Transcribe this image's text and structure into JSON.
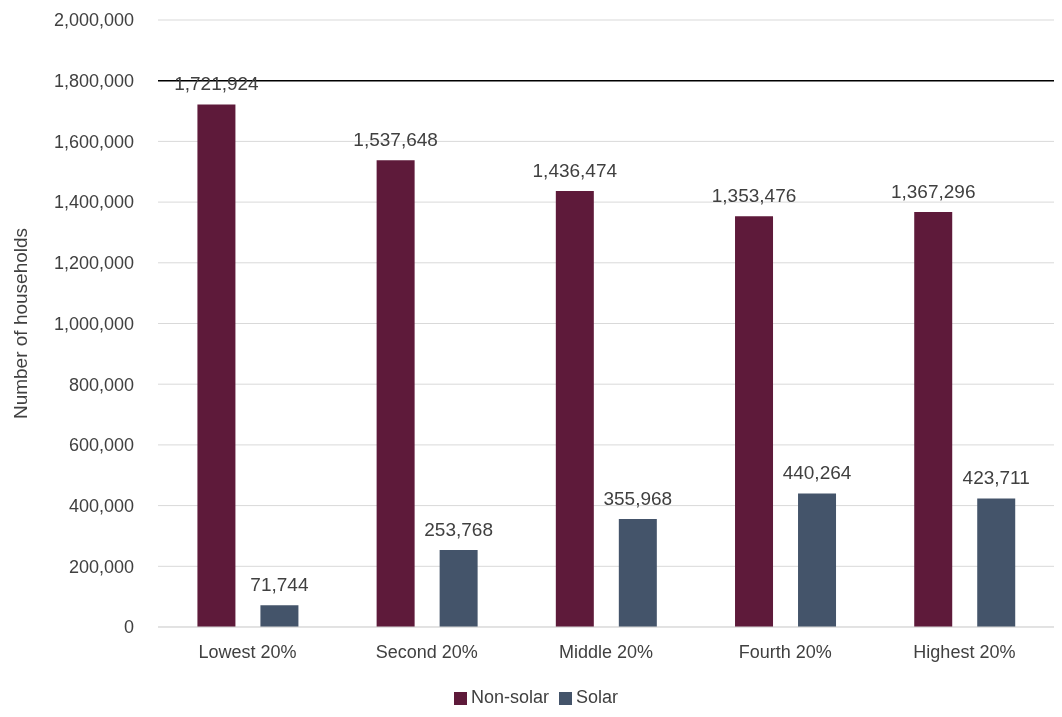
{
  "chart_data": {
    "type": "bar",
    "ylabel": "Number of households",
    "categories": [
      "Lowest 20%",
      "Second 20%",
      "Middle 20%",
      "Fourth 20%",
      "Highest 20%"
    ],
    "series": [
      {
        "name": "Non-solar",
        "color": "#5e1a3a",
        "values": [
          1721924,
          1537648,
          1436474,
          1353476,
          1367296
        ],
        "value_labels": [
          "1,721,924",
          "1,537,648",
          "1,436,474",
          "1,353,476",
          "1,367,296"
        ]
      },
      {
        "name": "Solar",
        "color": "#44546a",
        "values": [
          71744,
          253768,
          355968,
          440264,
          423711
        ],
        "value_labels": [
          "71,744",
          "253,768",
          "355,968",
          "440,264",
          "423,711"
        ]
      }
    ],
    "ylim": [
      0,
      2000000
    ],
    "yticks": [
      {
        "value": 0,
        "label": "0"
      },
      {
        "value": 200000,
        "label": "200,000"
      },
      {
        "value": 400000,
        "label": "400,000"
      },
      {
        "value": 600000,
        "label": "600,000"
      },
      {
        "value": 800000,
        "label": "800,000"
      },
      {
        "value": 1000000,
        "label": "1,000,000"
      },
      {
        "value": 1200000,
        "label": "1,200,000"
      },
      {
        "value": 1400000,
        "label": "1,400,000"
      },
      {
        "value": 1600000,
        "label": "1,600,000"
      },
      {
        "value": 1800000,
        "label": "1,800,000"
      },
      {
        "value": 2000000,
        "label": "2,000,000"
      }
    ],
    "ref_lines": [
      {
        "axis": "y",
        "value": 1800000,
        "color": "#000000"
      }
    ],
    "grid": "y",
    "legend": "bottom"
  }
}
